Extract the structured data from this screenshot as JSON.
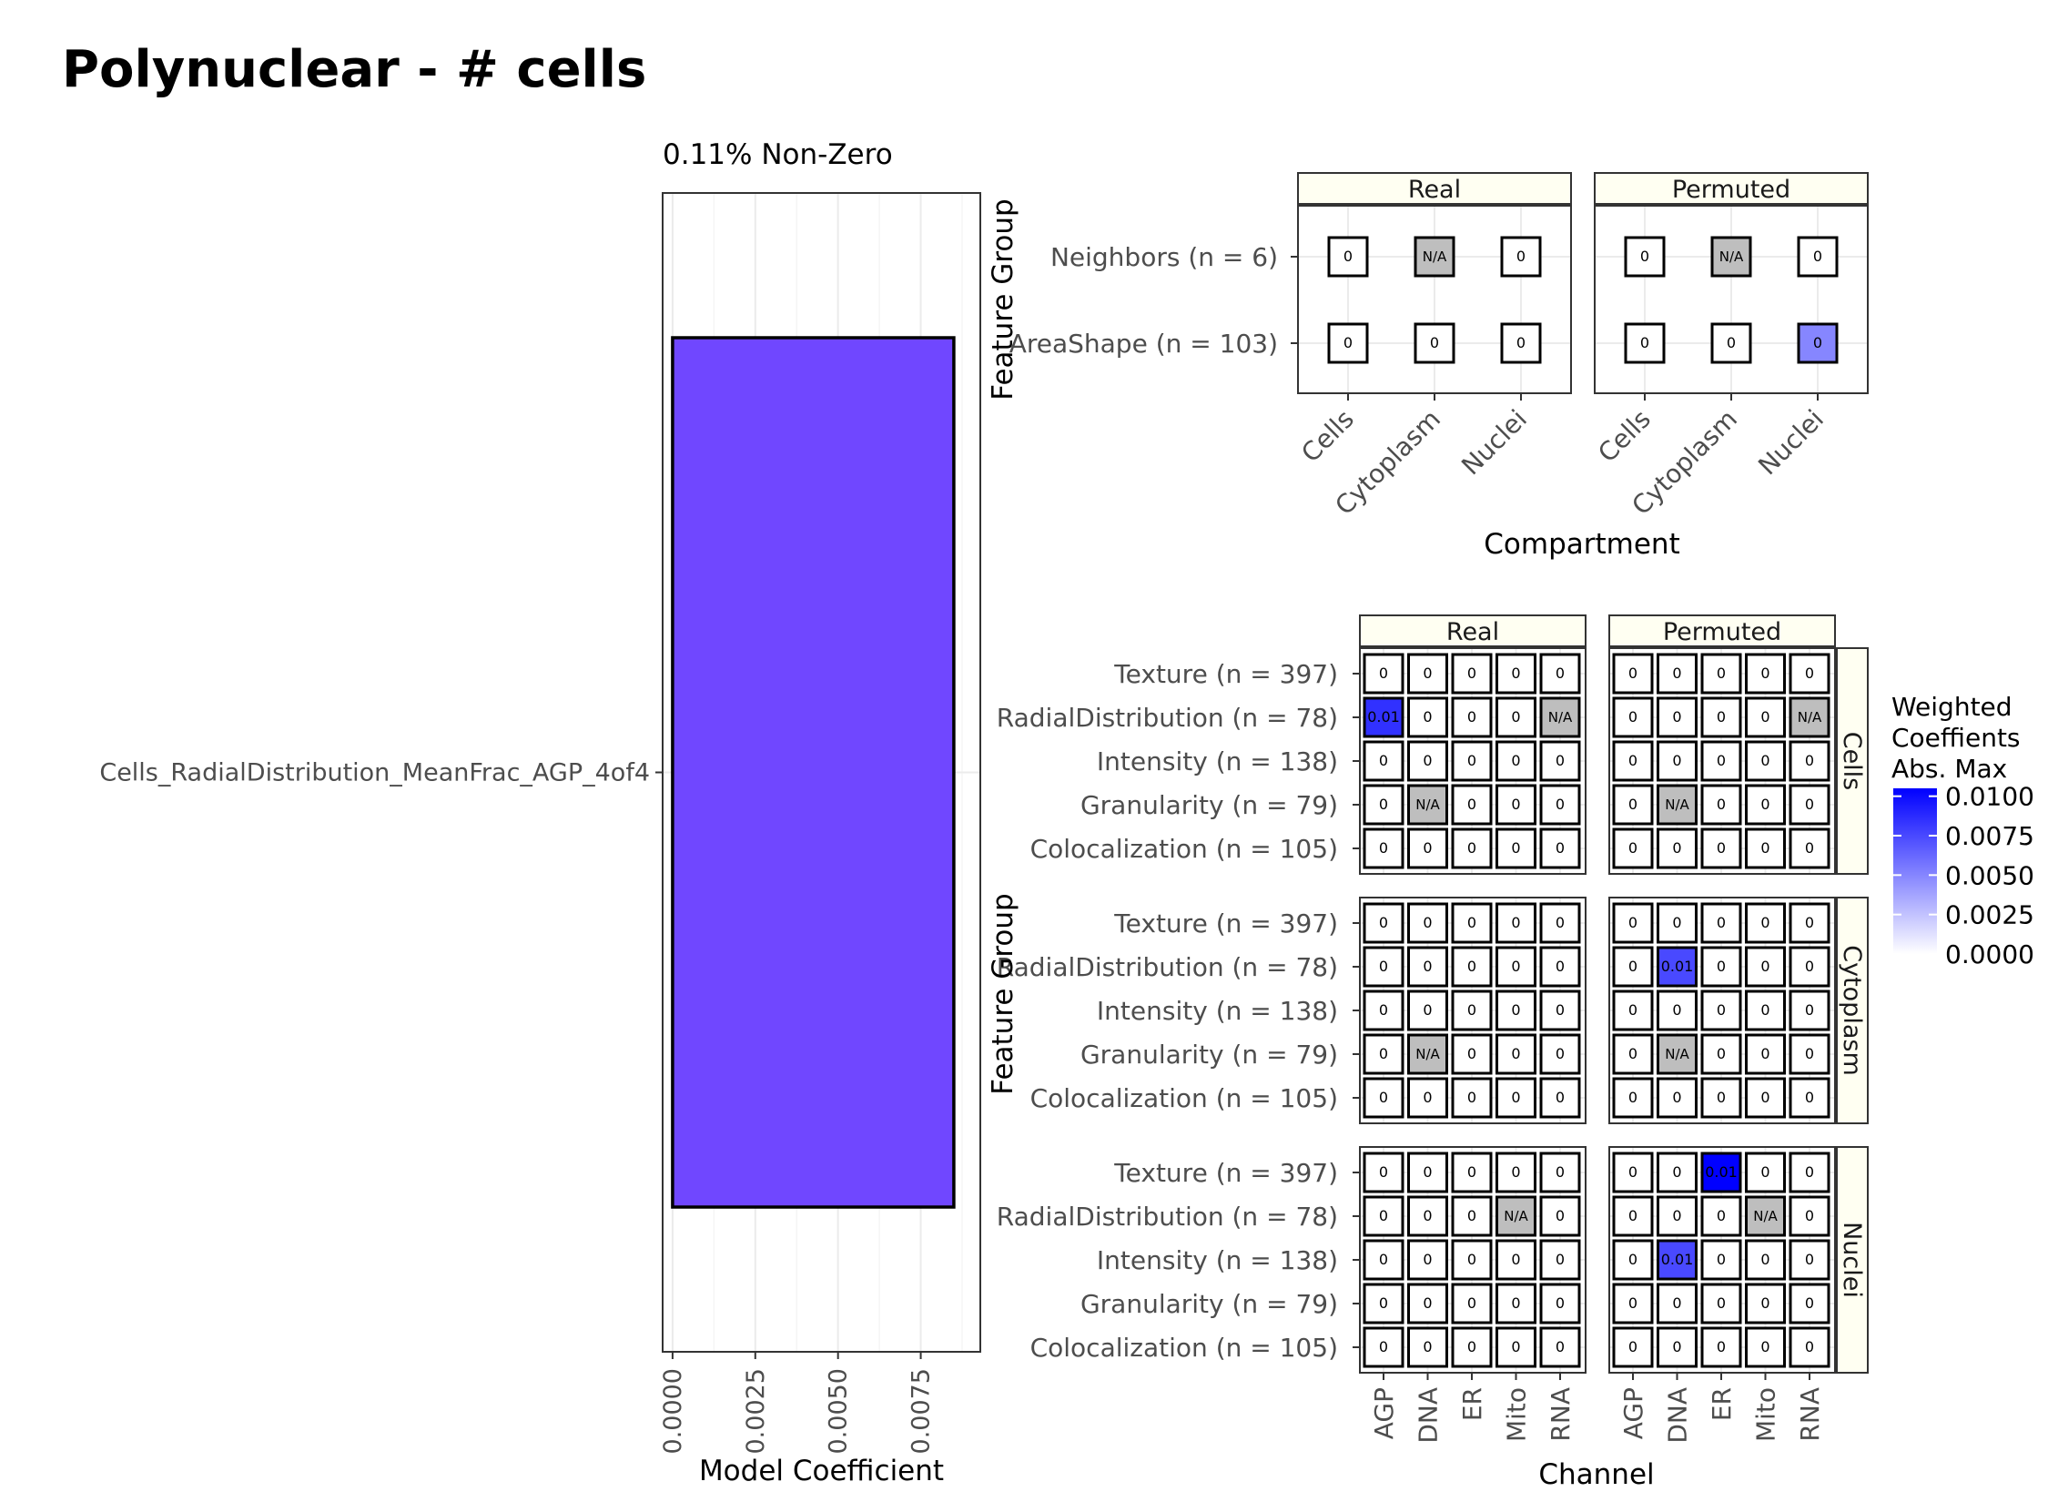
{
  "title": "Polynuclear - # cells",
  "colors": {
    "bar_fill": "#7047ff",
    "na_fill": "#bebebe",
    "zero_fill": "#ffffff",
    "max_fill": "#0000ff",
    "strip_fill": "#fffff2",
    "grid": "#ebebeb",
    "text_dark": "#000000",
    "text_tick": "#4d4d4d"
  },
  "chart_data": [
    {
      "type": "bar",
      "orientation": "horizontal",
      "subtitle": "0.11% Non-Zero",
      "categories": [
        "Cells_RadialDistribution_MeanFrac_AGP_4of4"
      ],
      "values": [
        0.0085
      ],
      "xlabel": "Model Coefficient",
      "xlim": [
        -0.0003,
        0.0093
      ],
      "xticks": [
        0.0,
        0.0025,
        0.005,
        0.0075
      ],
      "xtick_labels": [
        "0.0000",
        "0.0025",
        "0.0050",
        "0.0075"
      ],
      "grid": true
    },
    {
      "type": "heatmap",
      "xlabel": "Compartment",
      "ylabel": "Feature Group",
      "columns": [
        "Cells",
        "Cytoplasm",
        "Nuclei"
      ],
      "rows": [
        "Neighbors (n = 6)",
        "AreaShape (n = 103)"
      ],
      "facets": [
        {
          "name": "Real",
          "cells": [
            [
              "0",
              "N/A",
              "0"
            ],
            [
              "0",
              "0",
              "0"
            ]
          ],
          "values": [
            [
              0,
              null,
              0
            ],
            [
              0,
              0,
              0
            ]
          ]
        },
        {
          "name": "Permuted",
          "cells": [
            [
              "0",
              "N/A",
              "0"
            ],
            [
              "0",
              "0",
              "0"
            ]
          ],
          "values": [
            [
              0,
              null,
              0
            ],
            [
              0,
              0,
              0.005
            ]
          ]
        }
      ]
    },
    {
      "type": "heatmap",
      "xlabel": "Channel",
      "ylabel": "Feature Group",
      "columns": [
        "AGP",
        "DNA",
        "ER",
        "Mito",
        "RNA"
      ],
      "rows": [
        "Texture (n = 397)",
        "RadialDistribution (n = 78)",
        "Intensity (n = 138)",
        "Granularity (n = 79)",
        "Colocalization (n = 105)"
      ],
      "col_facets": [
        "Real",
        "Permuted"
      ],
      "row_facets": [
        "Cells",
        "Cytoplasm",
        "Nuclei"
      ],
      "panels": [
        {
          "facet": "Real",
          "compartment": "Cells",
          "cells": [
            [
              "0",
              "0",
              "0",
              "0",
              "0"
            ],
            [
              "0.01",
              "0",
              "0",
              "0",
              "N/A"
            ],
            [
              "0",
              "0",
              "0",
              "0",
              "0"
            ],
            [
              "0",
              "N/A",
              "0",
              "0",
              "0"
            ],
            [
              "0",
              "0",
              "0",
              "0",
              "0"
            ]
          ],
          "values": [
            [
              0,
              0,
              0,
              0,
              0
            ],
            [
              0.0085,
              0,
              0,
              0,
              null
            ],
            [
              0,
              0,
              0,
              0,
              0
            ],
            [
              0,
              null,
              0,
              0,
              0
            ],
            [
              0,
              0,
              0,
              0,
              0
            ]
          ]
        },
        {
          "facet": "Permuted",
          "compartment": "Cells",
          "cells": [
            [
              "0",
              "0",
              "0",
              "0",
              "0"
            ],
            [
              "0",
              "0",
              "0",
              "0",
              "N/A"
            ],
            [
              "0",
              "0",
              "0",
              "0",
              "0"
            ],
            [
              "0",
              "N/A",
              "0",
              "0",
              "0"
            ],
            [
              "0",
              "0",
              "0",
              "0",
              "0"
            ]
          ],
          "values": [
            [
              0,
              0,
              0,
              0,
              0
            ],
            [
              0,
              0,
              0,
              0,
              null
            ],
            [
              0,
              0,
              0,
              0,
              0
            ],
            [
              0,
              null,
              0,
              0,
              0
            ],
            [
              0,
              0,
              0,
              0,
              0
            ]
          ]
        },
        {
          "facet": "Real",
          "compartment": "Cytoplasm",
          "cells": [
            [
              "0",
              "0",
              "0",
              "0",
              "0"
            ],
            [
              "0",
              "0",
              "0",
              "0",
              "0"
            ],
            [
              "0",
              "0",
              "0",
              "0",
              "0"
            ],
            [
              "0",
              "N/A",
              "0",
              "0",
              "0"
            ],
            [
              "0",
              "0",
              "0",
              "0",
              "0"
            ]
          ],
          "values": [
            [
              0,
              0,
              0,
              0,
              0
            ],
            [
              0,
              0,
              0,
              0,
              0
            ],
            [
              0,
              0,
              0,
              0,
              0
            ],
            [
              0,
              null,
              0,
              0,
              0
            ],
            [
              0,
              0,
              0,
              0,
              0
            ]
          ]
        },
        {
          "facet": "Permuted",
          "compartment": "Cytoplasm",
          "cells": [
            [
              "0",
              "0",
              "0",
              "0",
              "0"
            ],
            [
              "0",
              "0.01",
              "0",
              "0",
              "0"
            ],
            [
              "0",
              "0",
              "0",
              "0",
              "0"
            ],
            [
              "0",
              "N/A",
              "0",
              "0",
              "0"
            ],
            [
              "0",
              "0",
              "0",
              "0",
              "0"
            ]
          ],
          "values": [
            [
              0,
              0,
              0,
              0,
              0
            ],
            [
              0,
              0.0075,
              0,
              0,
              0
            ],
            [
              0,
              0,
              0,
              0,
              0
            ],
            [
              0,
              null,
              0,
              0,
              0
            ],
            [
              0,
              0,
              0,
              0,
              0
            ]
          ]
        },
        {
          "facet": "Real",
          "compartment": "Nuclei",
          "cells": [
            [
              "0",
              "0",
              "0",
              "0",
              "0"
            ],
            [
              "0",
              "0",
              "0",
              "N/A",
              "0"
            ],
            [
              "0",
              "0",
              "0",
              "0",
              "0"
            ],
            [
              "0",
              "0",
              "0",
              "0",
              "0"
            ],
            [
              "0",
              "0",
              "0",
              "0",
              "0"
            ]
          ],
          "values": [
            [
              0,
              0,
              0,
              0,
              0
            ],
            [
              0,
              0,
              0,
              null,
              0
            ],
            [
              0,
              0,
              0,
              0,
              0
            ],
            [
              0,
              0,
              0,
              0,
              0
            ],
            [
              0,
              0,
              0,
              0,
              0
            ]
          ]
        },
        {
          "facet": "Permuted",
          "compartment": "Nuclei",
          "cells": [
            [
              "0",
              "0",
              "0.01",
              "0",
              "0"
            ],
            [
              "0",
              "0",
              "0",
              "N/A",
              "0"
            ],
            [
              "0",
              "0.01",
              "0",
              "0",
              "0"
            ],
            [
              "0",
              "0",
              "0",
              "0",
              "0"
            ],
            [
              "0",
              "0",
              "0",
              "0",
              "0"
            ]
          ],
          "values": [
            [
              0,
              0,
              0.0105,
              0,
              0
            ],
            [
              0,
              0,
              0,
              null,
              0
            ],
            [
              0,
              0.0075,
              0,
              0,
              0
            ],
            [
              0,
              0,
              0,
              0,
              0
            ],
            [
              0,
              0,
              0,
              0,
              0
            ]
          ]
        }
      ]
    }
  ],
  "legend": {
    "title_lines": [
      "Weighted",
      "Coeffients",
      "Abs. Max"
    ],
    "placement": "right",
    "range": [
      0,
      0.0105
    ],
    "breaks": [
      0.01,
      0.0075,
      0.005,
      0.0025,
      0.0
    ],
    "labels": [
      "0.0100",
      "0.0075",
      "0.0050",
      "0.0025",
      "0.0000"
    ]
  }
}
